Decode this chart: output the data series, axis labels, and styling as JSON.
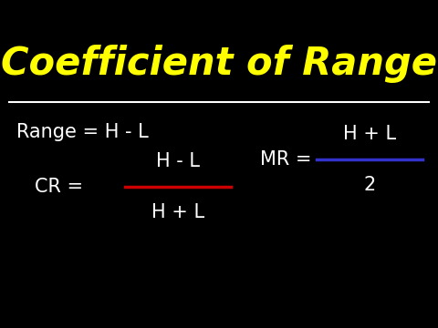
{
  "background_color": "#000000",
  "title": "Coefficient of Range",
  "title_color": "#FFFF00",
  "title_fontsize": 30,
  "separator_color": "#FFFFFF",
  "text_color": "#FFFFFF",
  "red_color": "#CC0000",
  "blue_color": "#3333CC",
  "formula_range": "Range = H - L",
  "formula_cr_left": "CR = ",
  "formula_cr_num": "H - L",
  "formula_cr_den": "H + L",
  "formula_mr_left": "MR = ",
  "formula_mr_num": "H + L",
  "formula_mr_den": "2",
  "fig_width": 4.8,
  "fig_height": 3.6,
  "dpi": 100
}
